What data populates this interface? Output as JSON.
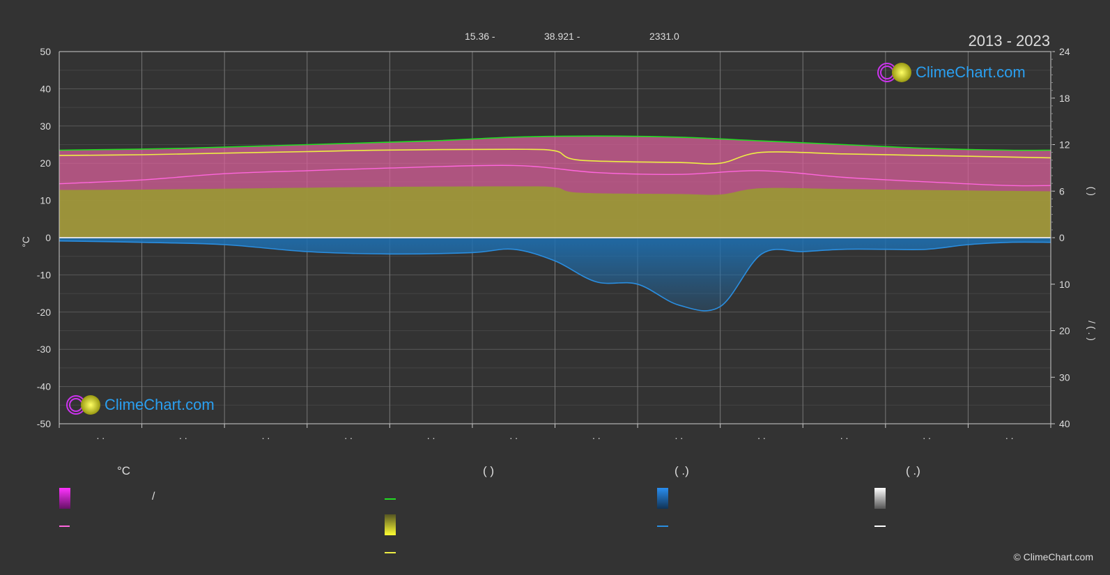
{
  "header": {
    "stat1": "15.36 -",
    "stat2": "38.921 -",
    "stat3": "2331.0",
    "period": "2013 - 2023"
  },
  "logo": {
    "text": "ClimeChart.com"
  },
  "copyright": "© ClimeChart.com",
  "legend": {
    "col1_title": "°C",
    "col2_title": "(          )",
    "col3_title": "(    .)",
    "col4_title": "(    .)",
    "slash_text": "/"
  },
  "colors": {
    "background": "#333333",
    "max_line": "#22dd22",
    "sunshine_line": "#eeee44",
    "mean_temp_line": "#ff66dd",
    "precip_line": "#2a8ee0",
    "temp_fill": "#d8609a",
    "sun_fill": "#999933",
    "precip_fill": "#1e6fb0"
  },
  "chart_data": {
    "type": "area",
    "x_months": 12,
    "x_tick_labels": [
      ". .",
      ". .",
      ". .",
      ". .",
      ". .",
      ". .",
      ". .",
      ". .",
      ". .",
      ". .",
      ". .",
      ". ."
    ],
    "left_axis": {
      "label": "°C",
      "ylim": [
        -50,
        50
      ],
      "ticks": [
        50,
        40,
        30,
        20,
        10,
        0,
        -10,
        -20,
        -30,
        -40,
        -50
      ]
    },
    "right_axis_top": {
      "ylim": [
        0,
        24
      ],
      "ticks": [
        24,
        18,
        12,
        6,
        0
      ],
      "label": "(          )"
    },
    "right_axis_bottom": {
      "ylim": [
        0,
        40
      ],
      "ticks": [
        0,
        10,
        20,
        30,
        40
      ],
      "label": "/ (  .  )"
    },
    "grid": true,
    "series": [
      {
        "key": "max_temp",
        "x": [
          0.0,
          1.5,
          3.0,
          4.5,
          5.5,
          6.5,
          7.5,
          8.5,
          9.5,
          10.5,
          11.5,
          12.0
        ],
        "values": [
          23.5,
          24.0,
          25.0,
          26.0,
          27.0,
          27.3,
          27.0,
          26.0,
          25.0,
          24.0,
          23.5,
          23.5
        ]
      },
      {
        "key": "sunshine_hours",
        "x": [
          0.0,
          1.0,
          2.0,
          3.0,
          4.0,
          5.5,
          6.0,
          6.3,
          7.5,
          8.0,
          8.5,
          9.5,
          10.5,
          11.5,
          12.0
        ],
        "values": [
          10.6,
          10.7,
          10.9,
          11.1,
          11.3,
          11.4,
          11.2,
          10.0,
          9.7,
          9.6,
          11.0,
          10.8,
          10.6,
          10.4,
          10.3
        ]
      },
      {
        "key": "mean_temp",
        "x": [
          0.0,
          1.0,
          2.0,
          3.0,
          4.0,
          5.5,
          6.5,
          7.5,
          8.5,
          9.5,
          10.5,
          11.5,
          12.0
        ],
        "values": [
          14.5,
          15.5,
          17.2,
          18.0,
          18.7,
          19.4,
          17.5,
          17.0,
          18.0,
          16.2,
          15.0,
          14.0,
          14.0
        ]
      },
      {
        "key": "precipitation_mm",
        "x": [
          0.0,
          1.0,
          2.0,
          3.0,
          4.0,
          5.0,
          5.5,
          6.0,
          6.5,
          7.0,
          7.5,
          8.0,
          8.5,
          9.0,
          9.5,
          10.0,
          10.5,
          11.0,
          11.5,
          12.0
        ],
        "values": [
          0.7,
          1.0,
          1.5,
          3.0,
          3.5,
          3.2,
          2.5,
          5.0,
          9.5,
          10.0,
          14.5,
          14.8,
          3.5,
          3.0,
          2.5,
          2.5,
          2.5,
          1.5,
          1.0,
          1.0
        ]
      }
    ]
  }
}
